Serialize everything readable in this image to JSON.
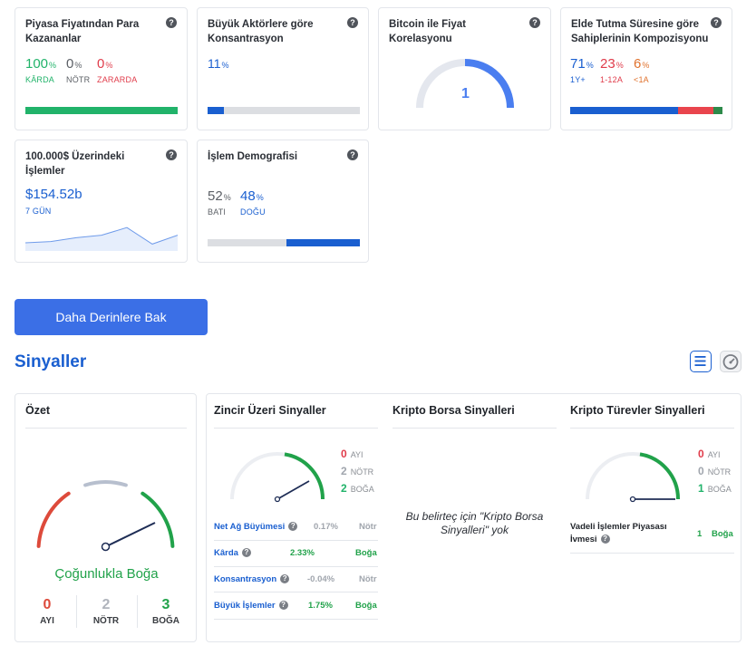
{
  "cards": {
    "profit": {
      "title": "Piyasa Fiyatından Para Kazananlar",
      "in_money": "100",
      "in_money_label": "KÂRDA",
      "neutral": "0",
      "neutral_label": "NÖTR",
      "out_money": "0",
      "out_money_label": "ZARARDA",
      "pct_sign": "%",
      "bar_fraction": {
        "in": 1.0,
        "neutral": 0.0,
        "out": 0.0
      }
    },
    "concentration": {
      "title": "Büyük Aktörlere göre Konsantrasyon",
      "value": "11",
      "pct_sign": "%",
      "bar_fraction": 0.11
    },
    "correlation": {
      "title": "Bitcoin ile Fiyat Korelasyonu",
      "value": "1"
    },
    "holding": {
      "title": "Elde Tutma Süresine göre Sahiplerinin Kompozisyonu",
      "items": [
        {
          "value": "71",
          "label": "1Y+",
          "fraction": 0.71
        },
        {
          "value": "23",
          "label": "1-12A",
          "fraction": 0.23
        },
        {
          "value": "6",
          "label": "<1A",
          "fraction": 0.06
        }
      ],
      "pct_sign": "%"
    },
    "large_tx": {
      "title": "100.000$ Üzerindeki İşlemler",
      "value": "$154.52b",
      "period": "7 GÜN",
      "sparkline": [
        0.25,
        0.3,
        0.45,
        0.55,
        0.85,
        0.2,
        0.55
      ]
    },
    "demography": {
      "title": "İşlem Demografisi",
      "west": "52",
      "west_label": "BATI",
      "east": "48",
      "east_label": "DOĞU",
      "pct_sign": "%",
      "bar_fraction": {
        "west": 0.52,
        "east": 0.48
      }
    }
  },
  "help_glyph": "?",
  "deeper_button": "Daha Derinlere Bak",
  "signals": {
    "title": "Sinyaller",
    "summary": {
      "title": "Özet",
      "verdict": "Çoğunlukla Boğa",
      "bear": "0",
      "bear_label": "AYI",
      "neutral": "2",
      "neutral_label": "NÖTR",
      "bull": "3",
      "bull_label": "BOĞA"
    },
    "onchain": {
      "title": "Zincir Üzeri Sinyaller",
      "bear": "0",
      "bear_label": "AYI",
      "neutral": "2",
      "neutral_label": "NÖTR",
      "bull": "2",
      "bull_label": "BOĞA",
      "rows": [
        {
          "label": "Net Ağ Büyümesi",
          "value": "0.17%",
          "signal": "Nötr"
        },
        {
          "label": "Kârda",
          "value": "2.33%",
          "signal": "Boğa"
        },
        {
          "label": "Konsantrasyon",
          "value": "-0.04%",
          "signal": "Nötr"
        },
        {
          "label": "Büyük İşlemler",
          "value": "1.75%",
          "signal": "Boğa"
        }
      ]
    },
    "exchange": {
      "title": "Kripto Borsa Sinyalleri",
      "empty": "Bu belirteç için \"Kripto Borsa Sinyalleri\" yok"
    },
    "derivatives": {
      "title": "Kripto Türevler Sinyalleri",
      "bear": "0",
      "bear_label": "AYI",
      "neutral": "0",
      "neutral_label": "NÖTR",
      "bull": "1",
      "bull_label": "BOĞA",
      "row_label": "Vadeli İşlemler Piyasası İvmesi",
      "row_value": "1",
      "row_signal": "Boğa"
    }
  },
  "colors": {
    "green": "#21b36a",
    "red": "#e03c4b",
    "blue": "#1a5fd0",
    "orange": "#e0722d"
  }
}
